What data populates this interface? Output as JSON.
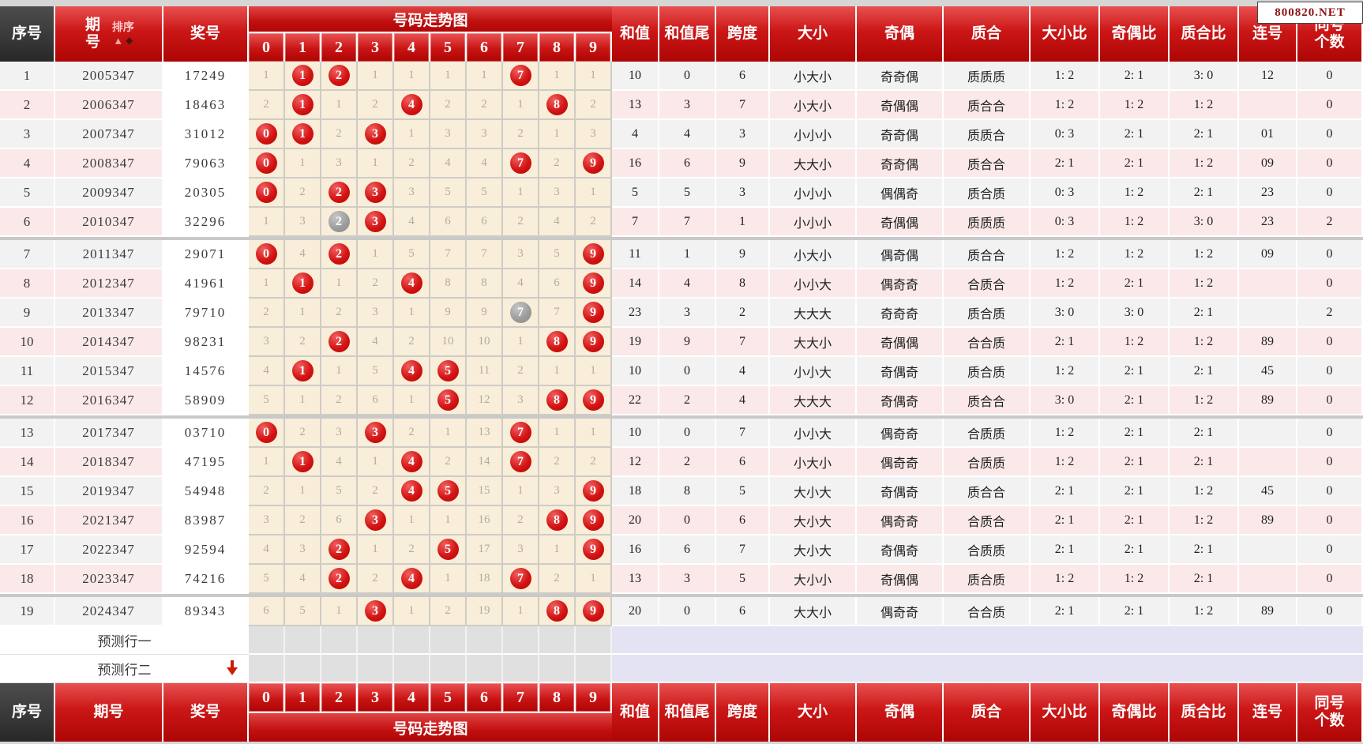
{
  "badge": "800820.NET",
  "header": {
    "seq": "序号",
    "period": "期号",
    "sort_label": "排序",
    "prize": "奖号",
    "trend_title": "号码走势图",
    "digits": [
      "0",
      "1",
      "2",
      "3",
      "4",
      "5",
      "6",
      "7",
      "8",
      "9"
    ],
    "sum": "和值",
    "sum_tail": "和值尾",
    "span": "跨度",
    "size": "大小",
    "parity": "奇偶",
    "prime": "质合",
    "size_ratio": "大小比",
    "parity_ratio": "奇偶比",
    "prime_ratio": "质合比",
    "consecutive": "连号",
    "same_count": "同号个数"
  },
  "rows": [
    {
      "seq": "1",
      "period": "2005347",
      "number": "17249",
      "trend": [
        "1",
        "R1",
        "R2",
        "1",
        "1",
        "1",
        "1",
        "R7",
        "1",
        "1"
      ],
      "sum": "10",
      "tail": "0",
      "span": "6",
      "size": "小大小",
      "parity": "奇奇偶",
      "prime": "质质质",
      "size_ratio": "1: 2",
      "parity_ratio": "2: 1",
      "prime_ratio": "3: 0",
      "consecutive": "12",
      "same_count": "0"
    },
    {
      "seq": "2",
      "period": "2006347",
      "number": "18463",
      "trend": [
        "2",
        "R1",
        "1",
        "2",
        "R4",
        "2",
        "2",
        "1",
        "R8",
        "2"
      ],
      "sum": "13",
      "tail": "3",
      "span": "7",
      "size": "小大小",
      "parity": "奇偶偶",
      "prime": "质合合",
      "size_ratio": "1: 2",
      "parity_ratio": "1: 2",
      "prime_ratio": "1: 2",
      "consecutive": "",
      "same_count": "0"
    },
    {
      "seq": "3",
      "period": "2007347",
      "number": "31012",
      "trend": [
        "R0",
        "R1",
        "2",
        "R3",
        "1",
        "3",
        "3",
        "2",
        "1",
        "3"
      ],
      "sum": "4",
      "tail": "4",
      "span": "3",
      "size": "小小小",
      "parity": "奇奇偶",
      "prime": "质质合",
      "size_ratio": "0: 3",
      "parity_ratio": "2: 1",
      "prime_ratio": "2: 1",
      "consecutive": "01",
      "same_count": "0"
    },
    {
      "seq": "4",
      "period": "2008347",
      "number": "79063",
      "trend": [
        "R0",
        "1",
        "3",
        "1",
        "2",
        "4",
        "4",
        "R7",
        "2",
        "R9"
      ],
      "sum": "16",
      "tail": "6",
      "span": "9",
      "size": "大大小",
      "parity": "奇奇偶",
      "prime": "质合合",
      "size_ratio": "2: 1",
      "parity_ratio": "2: 1",
      "prime_ratio": "1: 2",
      "consecutive": "09",
      "same_count": "0"
    },
    {
      "seq": "5",
      "period": "2009347",
      "number": "20305",
      "trend": [
        "R0",
        "2",
        "R2",
        "R3",
        "3",
        "5",
        "5",
        "1",
        "3",
        "1"
      ],
      "sum": "5",
      "tail": "5",
      "span": "3",
      "size": "小小小",
      "parity": "偶偶奇",
      "prime": "质合质",
      "size_ratio": "0: 3",
      "parity_ratio": "1: 2",
      "prime_ratio": "2: 1",
      "consecutive": "23",
      "same_count": "0"
    },
    {
      "seq": "6",
      "period": "2010347",
      "number": "32296",
      "trend": [
        "1",
        "3",
        "G2",
        "R3",
        "4",
        "6",
        "6",
        "2",
        "4",
        "2"
      ],
      "sum": "7",
      "tail": "7",
      "span": "1",
      "size": "小小小",
      "parity": "奇偶偶",
      "prime": "质质质",
      "size_ratio": "0: 3",
      "parity_ratio": "1: 2",
      "prime_ratio": "3: 0",
      "consecutive": "23",
      "same_count": "2"
    },
    {
      "seq": "7",
      "period": "2011347",
      "number": "29071",
      "trend": [
        "R0",
        "4",
        "R2",
        "1",
        "5",
        "7",
        "7",
        "3",
        "5",
        "R9"
      ],
      "sum": "11",
      "tail": "1",
      "span": "9",
      "size": "小大小",
      "parity": "偶奇偶",
      "prime": "质合合",
      "size_ratio": "1: 2",
      "parity_ratio": "1: 2",
      "prime_ratio": "1: 2",
      "consecutive": "09",
      "same_count": "0"
    },
    {
      "seq": "8",
      "period": "2012347",
      "number": "41961",
      "trend": [
        "1",
        "R1",
        "1",
        "2",
        "R4",
        "8",
        "8",
        "4",
        "6",
        "R9"
      ],
      "sum": "14",
      "tail": "4",
      "span": "8",
      "size": "小小大",
      "parity": "偶奇奇",
      "prime": "合质合",
      "size_ratio": "1: 2",
      "parity_ratio": "2: 1",
      "prime_ratio": "1: 2",
      "consecutive": "",
      "same_count": "0"
    },
    {
      "seq": "9",
      "period": "2013347",
      "number": "79710",
      "trend": [
        "2",
        "1",
        "2",
        "3",
        "1",
        "9",
        "9",
        "G7",
        "7",
        "R9"
      ],
      "sum": "23",
      "tail": "3",
      "span": "2",
      "size": "大大大",
      "parity": "奇奇奇",
      "prime": "质合质",
      "size_ratio": "3: 0",
      "parity_ratio": "3: 0",
      "prime_ratio": "2: 1",
      "consecutive": "",
      "same_count": "2"
    },
    {
      "seq": "10",
      "period": "2014347",
      "number": "98231",
      "trend": [
        "3",
        "2",
        "R2",
        "4",
        "2",
        "10",
        "10",
        "1",
        "R8",
        "R9"
      ],
      "sum": "19",
      "tail": "9",
      "span": "7",
      "size": "大大小",
      "parity": "奇偶偶",
      "prime": "合合质",
      "size_ratio": "2: 1",
      "parity_ratio": "1: 2",
      "prime_ratio": "1: 2",
      "consecutive": "89",
      "same_count": "0"
    },
    {
      "seq": "11",
      "period": "2015347",
      "number": "14576",
      "trend": [
        "4",
        "R1",
        "1",
        "5",
        "R4",
        "R5",
        "11",
        "2",
        "1",
        "1"
      ],
      "sum": "10",
      "tail": "0",
      "span": "4",
      "size": "小小大",
      "parity": "奇偶奇",
      "prime": "质合质",
      "size_ratio": "1: 2",
      "parity_ratio": "2: 1",
      "prime_ratio": "2: 1",
      "consecutive": "45",
      "same_count": "0"
    },
    {
      "seq": "12",
      "period": "2016347",
      "number": "58909",
      "trend": [
        "5",
        "1",
        "2",
        "6",
        "1",
        "R5",
        "12",
        "3",
        "R8",
        "R9"
      ],
      "sum": "22",
      "tail": "2",
      "span": "4",
      "size": "大大大",
      "parity": "奇偶奇",
      "prime": "质合合",
      "size_ratio": "3: 0",
      "parity_ratio": "2: 1",
      "prime_ratio": "1: 2",
      "consecutive": "89",
      "same_count": "0"
    },
    {
      "seq": "13",
      "period": "2017347",
      "number": "03710",
      "trend": [
        "R0",
        "2",
        "3",
        "R3",
        "2",
        "1",
        "13",
        "R7",
        "1",
        "1"
      ],
      "sum": "10",
      "tail": "0",
      "span": "7",
      "size": "小小大",
      "parity": "偶奇奇",
      "prime": "合质质",
      "size_ratio": "1: 2",
      "parity_ratio": "2: 1",
      "prime_ratio": "2: 1",
      "consecutive": "",
      "same_count": "0"
    },
    {
      "seq": "14",
      "period": "2018347",
      "number": "47195",
      "trend": [
        "1",
        "R1",
        "4",
        "1",
        "R4",
        "2",
        "14",
        "R7",
        "2",
        "2"
      ],
      "sum": "12",
      "tail": "2",
      "span": "6",
      "size": "小大小",
      "parity": "偶奇奇",
      "prime": "合质质",
      "size_ratio": "1: 2",
      "parity_ratio": "2: 1",
      "prime_ratio": "2: 1",
      "consecutive": "",
      "same_count": "0"
    },
    {
      "seq": "15",
      "period": "2019347",
      "number": "54948",
      "trend": [
        "2",
        "1",
        "5",
        "2",
        "R4",
        "R5",
        "15",
        "1",
        "3",
        "R9"
      ],
      "sum": "18",
      "tail": "8",
      "span": "5",
      "size": "大小大",
      "parity": "奇偶奇",
      "prime": "质合合",
      "size_ratio": "2: 1",
      "parity_ratio": "2: 1",
      "prime_ratio": "1: 2",
      "consecutive": "45",
      "same_count": "0"
    },
    {
      "seq": "16",
      "period": "2021347",
      "number": "83987",
      "trend": [
        "3",
        "2",
        "6",
        "R3",
        "1",
        "1",
        "16",
        "2",
        "R8",
        "R9"
      ],
      "sum": "20",
      "tail": "0",
      "span": "6",
      "size": "大小大",
      "parity": "偶奇奇",
      "prime": "合质合",
      "size_ratio": "2: 1",
      "parity_ratio": "2: 1",
      "prime_ratio": "1: 2",
      "consecutive": "89",
      "same_count": "0"
    },
    {
      "seq": "17",
      "period": "2022347",
      "number": "92594",
      "trend": [
        "4",
        "3",
        "R2",
        "1",
        "2",
        "R5",
        "17",
        "3",
        "1",
        "R9"
      ],
      "sum": "16",
      "tail": "6",
      "span": "7",
      "size": "大小大",
      "parity": "奇偶奇",
      "prime": "合质质",
      "size_ratio": "2: 1",
      "parity_ratio": "2: 1",
      "prime_ratio": "2: 1",
      "consecutive": "",
      "same_count": "0"
    },
    {
      "seq": "18",
      "period": "2023347",
      "number": "74216",
      "trend": [
        "5",
        "4",
        "R2",
        "2",
        "R4",
        "1",
        "18",
        "R7",
        "2",
        "1"
      ],
      "sum": "13",
      "tail": "3",
      "span": "5",
      "size": "大小小",
      "parity": "奇偶偶",
      "prime": "质合质",
      "size_ratio": "1: 2",
      "parity_ratio": "1: 2",
      "prime_ratio": "2: 1",
      "consecutive": "",
      "same_count": "0"
    },
    {
      "seq": "19",
      "period": "2024347",
      "number": "89343",
      "trend": [
        "6",
        "5",
        "1",
        "R3",
        "1",
        "2",
        "19",
        "1",
        "R8",
        "R9"
      ],
      "sum": "20",
      "tail": "0",
      "span": "6",
      "size": "大大小",
      "parity": "偶奇奇",
      "prime": "合合质",
      "size_ratio": "2: 1",
      "parity_ratio": "2: 1",
      "prime_ratio": "1: 2",
      "consecutive": "89",
      "same_count": "0"
    }
  ],
  "group_break_after": [
    6,
    12,
    18
  ],
  "predictions": [
    {
      "label": "预测行一",
      "arrow": false
    },
    {
      "label": "预测行二",
      "arrow": true
    }
  ],
  "colors": {
    "header_red": "#c11212",
    "ball_red": "#cf0d0d",
    "ball_gray": "#999999",
    "trend_bg": "#f8eed9",
    "row_pink": "#fbe9e9",
    "row_gray": "#f2f2f2",
    "prediction_lavender": "#e3e3f3"
  }
}
